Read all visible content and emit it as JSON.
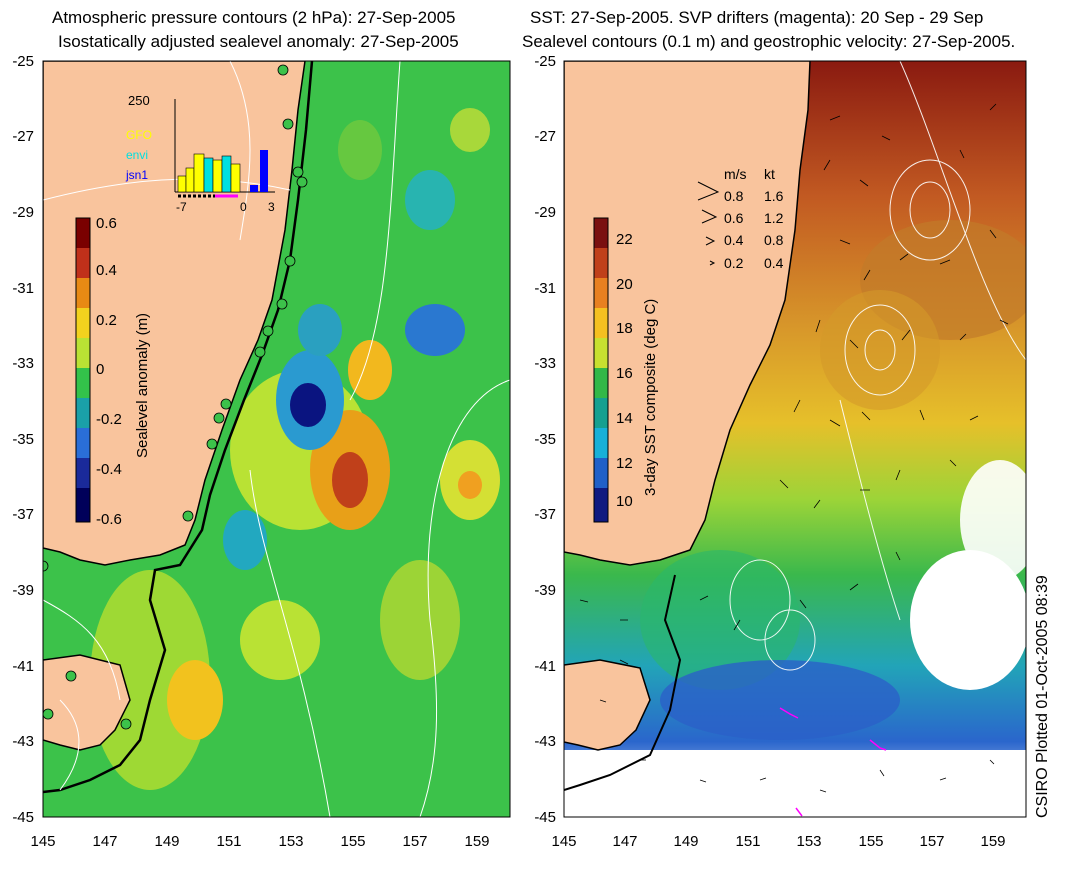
{
  "left_panel": {
    "title_line1": "Atmospheric pressure contours (2 hPa): 27-Sep-2005",
    "title_line2": "Isostatically adjusted sealevel anomaly: 27-Sep-2005",
    "y_ticks": [
      "-25",
      "-27",
      "-29",
      "-31",
      "-33",
      "-35",
      "-37",
      "-39",
      "-41",
      "-43",
      "-45"
    ],
    "x_ticks": [
      "145",
      "147",
      "149",
      "151",
      "153",
      "155",
      "157",
      "159"
    ],
    "colorbar": {
      "label": "Sealevel anomaly (m)",
      "ticks": [
        "0.6",
        "0.4",
        "0.2",
        "0",
        "-0.2",
        "-0.4",
        "-0.6"
      ],
      "colors": [
        "#7a0000",
        "#c0301a",
        "#e88a14",
        "#f2d21e",
        "#b9e234",
        "#33c24a",
        "#1aa0a8",
        "#2a6ed8",
        "#1a2a9a",
        "#00005a"
      ]
    },
    "inset": {
      "y_max": "250",
      "x_ticks": [
        "-7",
        "0",
        "3"
      ],
      "satellites": [
        {
          "name": "GFO",
          "color": "#ffff00"
        },
        {
          "name": "envi",
          "color": "#00e0e0"
        },
        {
          "name": "jsn1",
          "color": "#0000ff"
        }
      ]
    }
  },
  "right_panel": {
    "title_line1": "SST: 27-Sep-2005. SVP drifters (magenta): 20 Sep - 29 Sep",
    "title_line2": "Sealevel contours (0.1 m) and geostrophic velocity: 27-Sep-2005.",
    "y_ticks": [
      "-25",
      "-27",
      "-29",
      "-31",
      "-33",
      "-35",
      "-37",
      "-39",
      "-41",
      "-43",
      "-45"
    ],
    "x_ticks": [
      "145",
      "147",
      "149",
      "151",
      "153",
      "155",
      "157",
      "159"
    ],
    "colorbar": {
      "label": "3-day SST composite (deg C)",
      "ticks": [
        "22",
        "20",
        "18",
        "16",
        "14",
        "12",
        "10"
      ],
      "colors": [
        "#7a1010",
        "#c0401a",
        "#e88020",
        "#f5c020",
        "#c8e030",
        "#33b848",
        "#16a090",
        "#18b0d8",
        "#2060c8",
        "#101a80"
      ]
    },
    "velocity_legend": {
      "header_ms": "m/s",
      "header_kt": "kt",
      "rows": [
        {
          "ms": "0.8",
          "kt": "1.6"
        },
        {
          "ms": "0.6",
          "kt": "1.2"
        },
        {
          "ms": "0.4",
          "kt": "0.8"
        },
        {
          "ms": "0.2",
          "kt": "0.4"
        }
      ]
    }
  },
  "colors": {
    "land": "#f9c49d",
    "ocean_left": "#3cc24a",
    "coast": "#000000"
  },
  "credit": "CSIRO Plotted 01-Oct-2005 08:39"
}
